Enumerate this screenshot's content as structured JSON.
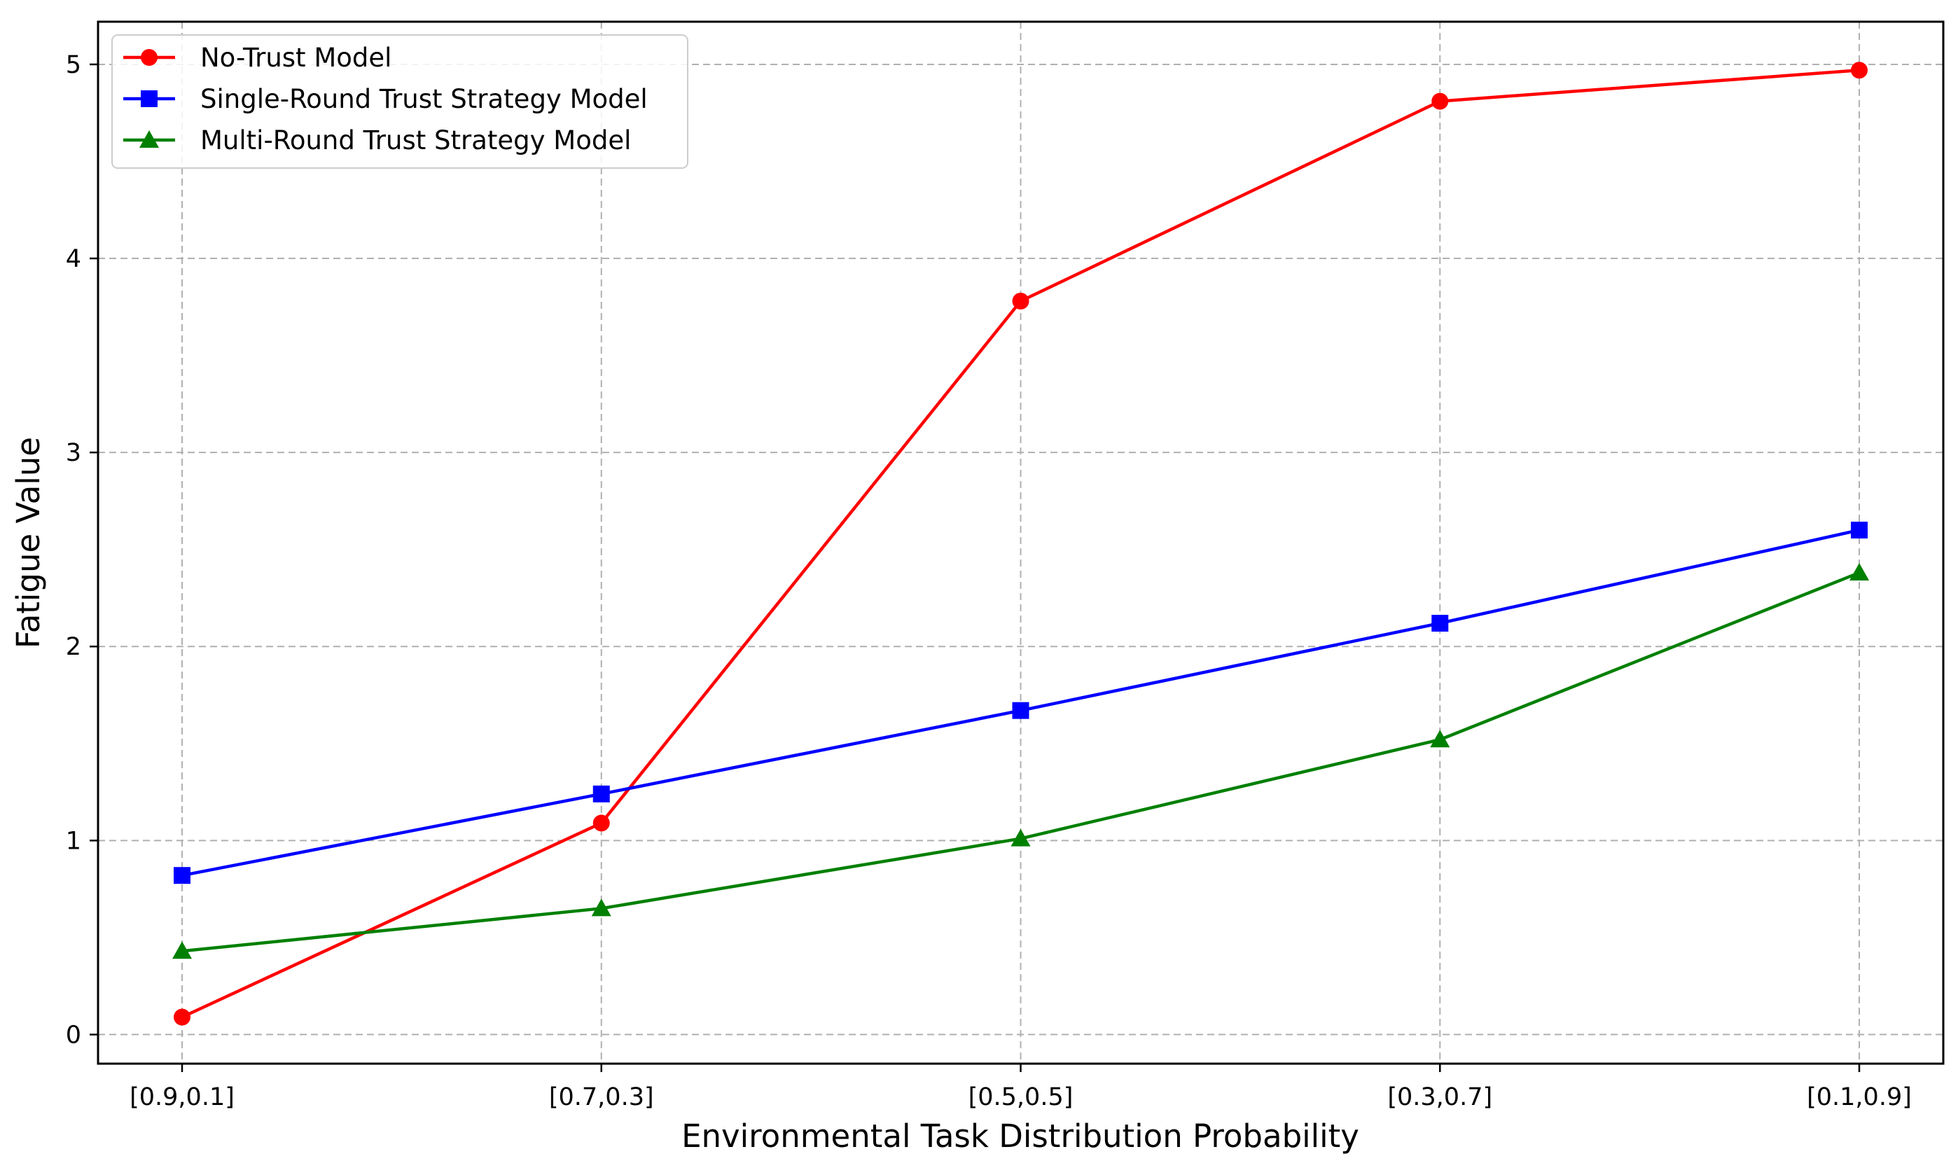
{
  "chart_data": {
    "type": "line",
    "title": "",
    "xlabel": "Environmental Task Distribution Probability",
    "ylabel": "Fatigue Value",
    "categories": [
      "[0.9,0.1]",
      "[0.7,0.3]",
      "[0.5,0.5]",
      "[0.3,0.7]",
      "[0.1,0.9]"
    ],
    "ylim": [
      -0.15,
      5.22
    ],
    "yticks": [
      0,
      1,
      2,
      3,
      4,
      5
    ],
    "grid": true,
    "legend_position": "top-left",
    "series": [
      {
        "name": "No-Trust Model",
        "color": "#ff0000",
        "marker": "circle",
        "values": [
          0.09,
          1.09,
          3.78,
          4.81,
          4.97
        ]
      },
      {
        "name": "Single-Round Trust Strategy Model",
        "color": "#0000ff",
        "marker": "square",
        "values": [
          0.82,
          1.24,
          1.67,
          2.12,
          2.6
        ]
      },
      {
        "name": "Multi-Round Trust Strategy Model",
        "color": "#008000",
        "marker": "triangle",
        "values": [
          0.43,
          0.65,
          1.01,
          1.52,
          2.38
        ]
      }
    ]
  }
}
